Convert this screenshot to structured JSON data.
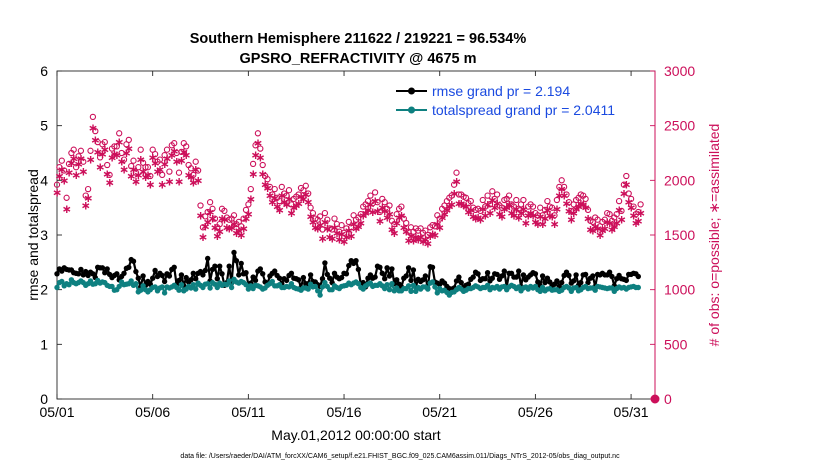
{
  "chart_data": {
    "type": "line",
    "title": "Southern Hemisphere 211622 / 219221 = 96.534%",
    "subtitle": "GPSRO_REFRACTIVITY @ 4675 m",
    "xlabel": "May.01,2012 00:00:00 start",
    "ylabel_left": "rmse and totalspread",
    "ylabel_right": "# of obs: o=possible; ∗=assimilated",
    "footer": "data file: /Users/raeder/DAI/ATM_forcXX/CAM6_setup/f.e21.FHIST_BGC.f09_025.CAM6assim.011/Diags_NTrS_2012-05/obs_diag_output.nc",
    "x_ticks": [
      "05/01",
      "05/06",
      "05/11",
      "05/16",
      "05/21",
      "05/26",
      "05/31"
    ],
    "x_tick_days": [
      0,
      5,
      10,
      15,
      20,
      25,
      30
    ],
    "xlim": [
      0,
      31.25
    ],
    "ylim_left": [
      0,
      6
    ],
    "y_ticks_left": [
      "0",
      "1",
      "2",
      "3",
      "4",
      "5",
      "6"
    ],
    "ylim_right": [
      0,
      3000
    ],
    "y_ticks_right": [
      "0",
      "500",
      "1000",
      "1500",
      "2000",
      "2500",
      "3000"
    ],
    "step_days": 0.125,
    "colors": {
      "rmse": "#000000",
      "totalspread": "#0e8080",
      "counts": "#cc0f5a",
      "axis": "#262626"
    },
    "legend": {
      "placement": "top-right"
    },
    "series": [
      {
        "name": "rmse",
        "legend_label": "rmse grand pr = 2.194",
        "values": [
          2.29,
          2.38,
          2.34,
          2.4,
          2.37,
          2.36,
          2.36,
          2.31,
          2.3,
          2.29,
          2.37,
          2.27,
          2.33,
          2.26,
          2.32,
          2.29,
          2.22,
          2.41,
          2.4,
          2.4,
          2.31,
          2.38,
          2.28,
          2.22,
          2.26,
          2.29,
          2.18,
          2.24,
          2.3,
          2.39,
          2.41,
          2.55,
          2.52,
          2.33,
          2.21,
          2.05,
          2.25,
          2.08,
          2.15,
          2.1,
          2.21,
          2.35,
          2.24,
          2.3,
          2.26,
          2.15,
          2.29,
          2.25,
          2.37,
          2.41,
          2.09,
          2.17,
          2.27,
          2.07,
          2.22,
          2.14,
          2.18,
          2.3,
          2.2,
          2.3,
          2.33,
          2.27,
          2.35,
          2.57,
          2.16,
          2.37,
          2.43,
          2.2,
          2.43,
          2.29,
          2.08,
          2.13,
          2.43,
          2.12,
          2.68,
          2.53,
          2.27,
          2.48,
          2.29,
          2.31,
          2.09,
          2.12,
          2.23,
          2.17,
          2.34,
          2.38,
          2.29,
          2.14,
          2.11,
          2.25,
          2.3,
          2.34,
          2.26,
          2.21,
          2.11,
          2.2,
          2.17,
          2.26,
          2.3,
          2.21,
          2.2,
          2.18,
          2.04,
          2.22,
          2.11,
          2.11,
          2.27,
          2.15,
          2.14,
          2.09,
          2.06,
          2.2,
          2.49,
          2.28,
          2.21,
          2.13,
          2.3,
          2.23,
          2.2,
          2.22,
          2.3,
          2.29,
          2.44,
          2.53,
          2.48,
          2.53,
          2.37,
          2.1,
          2.13,
          2.05,
          2.21,
          2.27,
          2.21,
          2.23,
          2.43,
          2.41,
          2.3,
          2.2,
          2.4,
          2.25,
          2.38,
          2.11,
          2.18,
          2.1,
          2.05,
          2.21,
          2.25,
          2.4,
          2.17,
          2.36,
          2.06,
          2.19,
          2.15,
          2.18,
          2.25,
          2.02,
          2.42,
          2.41,
          2.14,
          2.12,
          2.1,
          2.16,
          2.12,
          2.06,
          2.02,
          2.01,
          2.03,
          2.16,
          2.23,
          2.13,
          2.03,
          2.08,
          2.1,
          2.19,
          2.23,
          2.32,
          2.29,
          2.17,
          2.2,
          2.2,
          2.31,
          2.16,
          2.21,
          2.29,
          2.28,
          2.19,
          2.25,
          2.34,
          2.05,
          2.3,
          2.3,
          2.23,
          2.23,
          2.34,
          2.06,
          2.27,
          2.18,
          2.23,
          2.27,
          2.31,
          2.29,
          2.14,
          2.07,
          2.25,
          2.13,
          2.21,
          2.14,
          2.07,
          2.1,
          2.16,
          2.06,
          2.13,
          2.26,
          2.32,
          2.26,
          2.12,
          2.16,
          2.27,
          2.08,
          2.13,
          2.27,
          2.28,
          2.13,
          2.21,
          2.25,
          2.06,
          2.28,
          2.27,
          2.3,
          2.27,
          2.27,
          2.32,
          2.24,
          2.07,
          2.2,
          2.26,
          2.2,
          2.19,
          2.17,
          2.28,
          2.28,
          2.3,
          2.29,
          2.24
        ]
      },
      {
        "name": "totalspread",
        "legend_label": "totalspread grand pr = 2.0411",
        "values": [
          2.04,
          2.13,
          2.15,
          2.07,
          2.11,
          2.09,
          2.18,
          2.13,
          2.11,
          2.13,
          2.16,
          2.13,
          2.08,
          2.11,
          2.16,
          2.1,
          2.11,
          2.17,
          2.12,
          2.14,
          2.13,
          2.08,
          2.06,
          2.06,
          1.99,
          2.0,
          2.06,
          2.14,
          2.09,
          2.1,
          2.11,
          2.16,
          2.08,
          2.11,
          1.96,
          1.99,
          2.07,
          2.0,
          1.96,
          2.0,
          2.04,
          2.05,
          1.98,
          2.03,
          2.05,
          1.94,
          2.05,
          2.03,
          2.05,
          2.08,
          2.04,
          1.99,
          2.09,
          1.98,
          2.01,
          2.06,
          2.03,
          2.09,
          2.01,
          2.12,
          2.08,
          2.04,
          2.1,
          2.11,
          2.03,
          2.13,
          2.1,
          2.04,
          2.12,
          2.08,
          2.1,
          2.09,
          2.16,
          2.04,
          2.19,
          2.14,
          2.12,
          2.15,
          2.13,
          2.09,
          2.01,
          2.07,
          2.02,
          2.08,
          2.07,
          2.05,
          2.01,
          2.03,
          2.08,
          2.11,
          2.15,
          2.07,
          2.07,
          2.09,
          2.04,
          2.04,
          2.06,
          2.05,
          2.11,
          2.04,
          2.02,
          2.01,
          1.99,
          2.03,
          2.03,
          2.01,
          2.1,
          2.05,
          2.06,
          1.98,
          1.9,
          2.05,
          2.13,
          2.06,
          2.0,
          2.0,
          2.07,
          2.04,
          2.02,
          2.06,
          2.07,
          2.08,
          2.12,
          2.09,
          2.12,
          2.14,
          2.11,
          2.04,
          2.01,
          2.07,
          2.1,
          2.12,
          2.06,
          2.08,
          2.08,
          2.11,
          2.07,
          2.02,
          2.09,
          2.0,
          2.11,
          1.98,
          2.03,
          1.98,
          1.98,
          2.02,
          2.02,
          2.07,
          1.97,
          2.08,
          1.97,
          2.04,
          2.01,
          2.05,
          2.05,
          2.01,
          2.12,
          2.14,
          2.05,
          1.94,
          2.02,
          1.98,
          1.99,
          1.95,
          1.9,
          1.95,
          1.96,
          2.0,
          2.04,
          2.01,
          1.97,
          1.99,
          2.02,
          2.02,
          2.04,
          2.07,
          2.05,
          2.02,
          2.04,
          2.04,
          2.08,
          2.0,
          2.04,
          2.03,
          2.06,
          2.01,
          2.05,
          2.06,
          2.0,
          2.05,
          2.08,
          2.06,
          2.02,
          2.05,
          1.98,
          2.03,
          2.05,
          2.01,
          2.06,
          2.03,
          2.06,
          2.0,
          1.97,
          2.04,
          1.98,
          2.01,
          2.02,
          1.99,
          2.0,
          2.0,
          1.97,
          1.99,
          2.04,
          2.06,
          2.03,
          1.97,
          2.03,
          2.04,
          1.98,
          2.0,
          2.04,
          2.06,
          2.02,
          2.03,
          2.03,
          1.99,
          2.06,
          2.05,
          2.04,
          2.03,
          2.02,
          2.03,
          2.03,
          1.97,
          2.02,
          2.05,
          2.03,
          2.04,
          2.01,
          2.04,
          2.05,
          2.06,
          2.04,
          2.04
        ]
      },
      {
        "name": "obs_possible",
        "marker": "o",
        "values": [
          1960,
          2120,
          2180,
          2090,
          1840,
          2150,
          2250,
          2280,
          2120,
          2220,
          2270,
          2170,
          1860,
          1920,
          2270,
          2580,
          2450,
          2350,
          2210,
          2330,
          2350,
          2140,
          2050,
          2290,
          2310,
          2310,
          2430,
          2250,
          2190,
          2330,
          2370,
          2130,
          2180,
          2070,
          2120,
          2280,
          2160,
          2120,
          2120,
          2040,
          2280,
          2240,
          2170,
          2190,
          2050,
          2230,
          2280,
          2080,
          2320,
          2340,
          2250,
          2070,
          2260,
          2340,
          2310,
          2140,
          2110,
          2050,
          2170,
          2090,
          1770,
          1570,
          1670,
          1710,
          1800,
          1740,
          1650,
          1570,
          1600,
          1740,
          1720,
          1660,
          1640,
          1650,
          1680,
          1600,
          1620,
          1580,
          1650,
          1730,
          1780,
          1920,
          2150,
          2320,
          2430,
          2290,
          2140,
          2040,
          2010,
          1940,
          1870,
          1920,
          1840,
          1810,
          1940,
          1880,
          1860,
          1910,
          1780,
          1830,
          1850,
          1870,
          1930,
          1910,
          1950,
          1880,
          1750,
          1700,
          1650,
          1640,
          1670,
          1550,
          1700,
          1640,
          1560,
          1550,
          1650,
          1600,
          1530,
          1590,
          1520,
          1560,
          1620,
          1570,
          1680,
          1640,
          1660,
          1690,
          1760,
          1780,
          1810,
          1860,
          1790,
          1890,
          1800,
          1710,
          1830,
          1800,
          1740,
          1770,
          1630,
          1600,
          1690,
          1740,
          1760,
          1650,
          1610,
          1530,
          1570,
          1530,
          1560,
          1540,
          1560,
          1520,
          1540,
          1500,
          1570,
          1590,
          1580,
          1680,
          1650,
          1740,
          1770,
          1810,
          1840,
          1860,
          1960,
          2070,
          1870,
          1870,
          1850,
          1840,
          1790,
          1810,
          1750,
          1730,
          1740,
          1720,
          1820,
          1760,
          1860,
          1780,
          1900,
          1830,
          1870,
          1770,
          1750,
          1820,
          1830,
          1860,
          1780,
          1760,
          1820,
          1740,
          1780,
          1820,
          1690,
          1760,
          1780,
          1760,
          1700,
          1680,
          1750,
          1680,
          1730,
          1810,
          1760,
          1750,
          1680,
          1820,
          1940,
          2000,
          1940,
          1870,
          1800,
          1720,
          1780,
          1820,
          1840,
          1870,
          1860,
          1830,
          1730,
          1630,
          1620,
          1660,
          1640,
          1580,
          1620,
          1640,
          1700,
          1690,
          1630,
          1660,
          1690,
          1810,
          1720,
          1960,
          2040,
          1880,
          1830,
          1760,
          1690,
          1710,
          1780
        ]
      },
      {
        "name": "obs_assimilated",
        "marker": "*",
        "values": [
          1890,
          2040,
          2100,
          2000,
          1740,
          2070,
          2160,
          2200,
          2050,
          2150,
          2200,
          2080,
          1770,
          1840,
          2190,
          2480,
          2370,
          2260,
          2120,
          2240,
          2280,
          2060,
          1980,
          2210,
          2240,
          2230,
          2350,
          2170,
          2100,
          2250,
          2290,
          2040,
          2100,
          1990,
          2050,
          2190,
          2080,
          2030,
          2050,
          1960,
          2210,
          2160,
          2080,
          2100,
          1960,
          2150,
          2200,
          1990,
          2230,
          2270,
          2170,
          1990,
          2180,
          2260,
          2230,
          2050,
          2030,
          1980,
          2100,
          2000,
          1680,
          1480,
          1580,
          1620,
          1710,
          1650,
          1570,
          1490,
          1530,
          1650,
          1640,
          1570,
          1560,
          1570,
          1600,
          1520,
          1540,
          1500,
          1560,
          1650,
          1690,
          1830,
          2060,
          2230,
          2340,
          2210,
          2060,
          1960,
          1930,
          1860,
          1800,
          1840,
          1760,
          1730,
          1860,
          1800,
          1780,
          1830,
          1700,
          1750,
          1770,
          1790,
          1850,
          1830,
          1870,
          1800,
          1670,
          1620,
          1570,
          1560,
          1590,
          1470,
          1620,
          1560,
          1480,
          1470,
          1570,
          1520,
          1460,
          1510,
          1440,
          1480,
          1540,
          1490,
          1600,
          1560,
          1580,
          1610,
          1680,
          1700,
          1730,
          1780,
          1710,
          1810,
          1720,
          1630,
          1750,
          1720,
          1660,
          1690,
          1550,
          1520,
          1610,
          1660,
          1680,
          1570,
          1530,
          1450,
          1490,
          1450,
          1480,
          1460,
          1480,
          1440,
          1460,
          1420,
          1490,
          1510,
          1500,
          1600,
          1570,
          1660,
          1690,
          1730,
          1760,
          1780,
          1880,
          1990,
          1790,
          1790,
          1770,
          1760,
          1710,
          1730,
          1670,
          1650,
          1660,
          1640,
          1740,
          1680,
          1780,
          1700,
          1820,
          1750,
          1790,
          1690,
          1670,
          1740,
          1750,
          1780,
          1700,
          1680,
          1740,
          1660,
          1700,
          1740,
          1610,
          1680,
          1700,
          1680,
          1620,
          1600,
          1670,
          1600,
          1650,
          1730,
          1680,
          1670,
          1600,
          1740,
          1860,
          1920,
          1860,
          1790,
          1720,
          1640,
          1700,
          1740,
          1760,
          1790,
          1780,
          1750,
          1650,
          1550,
          1540,
          1580,
          1560,
          1500,
          1540,
          1560,
          1620,
          1610,
          1550,
          1580,
          1610,
          1730,
          1640,
          1880,
          1960,
          1800,
          1750,
          1680,
          1610,
          1630,
          1700
        ]
      }
    ],
    "annotations": [
      {
        "name": "zero-count-marker",
        "x_day": 31.25,
        "count": 0
      }
    ]
  }
}
